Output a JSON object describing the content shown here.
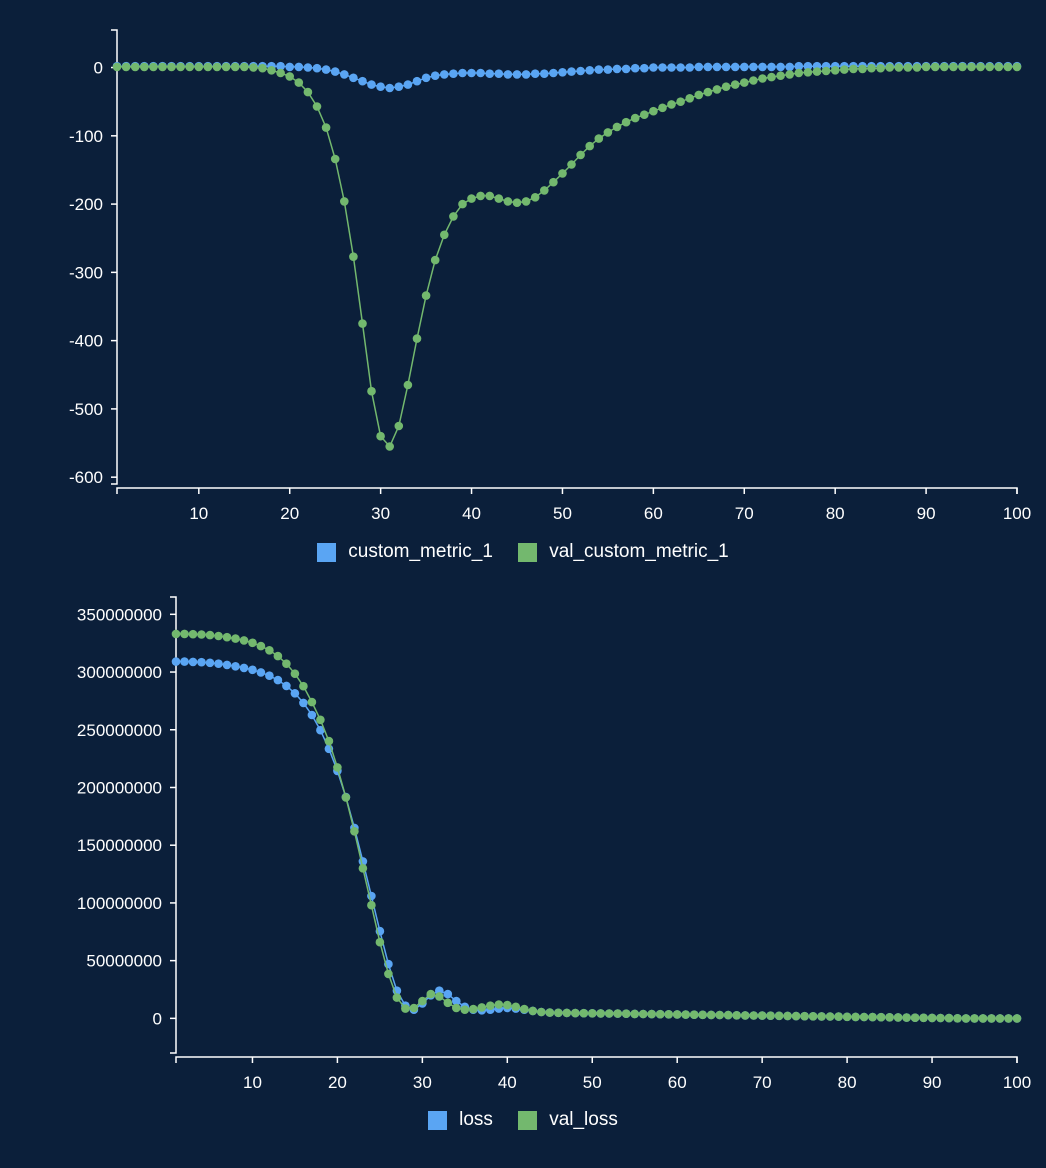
{
  "chart_data": [
    {
      "type": "line",
      "title": "",
      "xlabel": "",
      "ylabel": "",
      "xlim": [
        1,
        100
      ],
      "ylim": [
        -610,
        55
      ],
      "xticks": [
        "10",
        "20",
        "30",
        "40",
        "50",
        "60",
        "70",
        "80",
        "90",
        "100"
      ],
      "yticks": [
        "0",
        "-100",
        "-200",
        "-300",
        "-400",
        "-500",
        "-600"
      ],
      "legend_position": "bottom-center",
      "grid": false,
      "series": [
        {
          "name": "custom_metric_1",
          "color": "#5aa5f3",
          "x": [
            1,
            2,
            3,
            4,
            5,
            6,
            7,
            8,
            9,
            10,
            11,
            12,
            13,
            14,
            15,
            16,
            17,
            18,
            19,
            20,
            21,
            22,
            23,
            24,
            25,
            26,
            27,
            28,
            29,
            30,
            31,
            32,
            33,
            34,
            35,
            36,
            37,
            38,
            39,
            40,
            41,
            42,
            43,
            44,
            45,
            46,
            47,
            48,
            49,
            50,
            51,
            52,
            53,
            54,
            55,
            56,
            57,
            58,
            59,
            60,
            61,
            62,
            63,
            64,
            65,
            66,
            67,
            68,
            69,
            70,
            71,
            72,
            73,
            74,
            75,
            76,
            77,
            78,
            79,
            80,
            81,
            82,
            83,
            84,
            85,
            86,
            87,
            88,
            89,
            90,
            91,
            92,
            93,
            94,
            95,
            96,
            97,
            98,
            99,
            100
          ],
          "values": [
            2,
            2,
            2,
            2,
            2,
            2,
            2,
            2,
            2,
            2,
            2,
            2,
            2,
            2,
            2,
            2,
            2,
            2,
            2,
            1,
            1,
            0,
            -1,
            -3,
            -6,
            -10,
            -15,
            -20,
            -25,
            -28,
            -30,
            -28,
            -25,
            -20,
            -15,
            -12,
            -10,
            -9,
            -8,
            -8,
            -8,
            -9,
            -9,
            -10,
            -10,
            -10,
            -9,
            -9,
            -8,
            -7,
            -6,
            -5,
            -4,
            -3,
            -3,
            -2,
            -2,
            -1,
            -1,
            0,
            0,
            0,
            0,
            0,
            1,
            1,
            1,
            1,
            1,
            1,
            1,
            1,
            1,
            1,
            1,
            2,
            2,
            2,
            2,
            2,
            2,
            2,
            2,
            2,
            2,
            2,
            2,
            2,
            2,
            2,
            2,
            2,
            2,
            2,
            2,
            2,
            2,
            2,
            2,
            2
          ]
        },
        {
          "name": "val_custom_metric_1",
          "color": "#73b86e",
          "x": [
            1,
            2,
            3,
            4,
            5,
            6,
            7,
            8,
            9,
            10,
            11,
            12,
            13,
            14,
            15,
            16,
            17,
            18,
            19,
            20,
            21,
            22,
            23,
            24,
            25,
            26,
            27,
            28,
            29,
            30,
            31,
            32,
            33,
            34,
            35,
            36,
            37,
            38,
            39,
            40,
            41,
            42,
            43,
            44,
            45,
            46,
            47,
            48,
            49,
            50,
            51,
            52,
            53,
            54,
            55,
            56,
            57,
            58,
            59,
            60,
            61,
            62,
            63,
            64,
            65,
            66,
            67,
            68,
            69,
            70,
            71,
            72,
            73,
            74,
            75,
            76,
            77,
            78,
            79,
            80,
            81,
            82,
            83,
            84,
            85,
            86,
            87,
            88,
            89,
            90,
            91,
            92,
            93,
            94,
            95,
            96,
            97,
            98,
            99,
            100
          ],
          "values": [
            1,
            1,
            1,
            1,
            1,
            1,
            1,
            1,
            1,
            1,
            1,
            1,
            1,
            1,
            1,
            0,
            -1,
            -4,
            -8,
            -13,
            -22,
            -36,
            -57,
            -88,
            -134,
            -196,
            -277,
            -375,
            -474,
            -540,
            -555,
            -525,
            -465,
            -397,
            -334,
            -282,
            -245,
            -218,
            -200,
            -192,
            -188,
            -188,
            -192,
            -196,
            -198,
            -196,
            -190,
            -180,
            -168,
            -155,
            -142,
            -128,
            -115,
            -104,
            -95,
            -87,
            -80,
            -74,
            -69,
            -64,
            -59,
            -54,
            -50,
            -45,
            -40,
            -36,
            -32,
            -28,
            -25,
            -22,
            -19,
            -16,
            -14,
            -12,
            -10,
            -8,
            -7,
            -6,
            -5,
            -4,
            -3,
            -2,
            -2,
            -1,
            -1,
            0,
            0,
            0,
            0,
            1,
            1,
            1,
            1,
            1,
            1,
            1,
            1,
            1,
            1,
            1
          ]
        }
      ]
    },
    {
      "type": "line",
      "title": "",
      "xlabel": "",
      "ylabel": "",
      "xlim": [
        1,
        100
      ],
      "ylim": [
        -30000000,
        365000000
      ],
      "xticks": [
        "10",
        "20",
        "30",
        "40",
        "50",
        "60",
        "70",
        "80",
        "90",
        "100"
      ],
      "yticks": [
        "0",
        "50000000",
        "100000000",
        "150000000",
        "200000000",
        "250000000",
        "300000000",
        "350000000"
      ],
      "legend_position": "bottom-center",
      "grid": false,
      "series": [
        {
          "name": "loss",
          "color": "#5aa5f3",
          "x": [
            1,
            2,
            3,
            4,
            5,
            6,
            7,
            8,
            9,
            10,
            11,
            12,
            13,
            14,
            15,
            16,
            17,
            18,
            19,
            20,
            21,
            22,
            23,
            24,
            25,
            26,
            27,
            28,
            29,
            30,
            31,
            32,
            33,
            34,
            35,
            36,
            37,
            38,
            39,
            40,
            41,
            42,
            43,
            44,
            45,
            46,
            47,
            48,
            49,
            50,
            51,
            52,
            53,
            54,
            55,
            56,
            57,
            58,
            59,
            60,
            61,
            62,
            63,
            64,
            65,
            66,
            67,
            68,
            69,
            70,
            71,
            72,
            73,
            74,
            75,
            76,
            77,
            78,
            79,
            80,
            81,
            82,
            83,
            84,
            85,
            86,
            87,
            88,
            89,
            90,
            91,
            92,
            93,
            94,
            95,
            96,
            97,
            98,
            99,
            100
          ],
          "values": [
            309000000,
            309000000,
            308800000,
            308500000,
            308000000,
            307200000,
            306200000,
            305000000,
            303600000,
            301900000,
            299700000,
            296800000,
            293000000,
            288000000,
            281600000,
            273300000,
            262800000,
            249600000,
            233500000,
            214400000,
            191700000,
            165000000,
            136000000,
            106000000,
            75500000,
            47000000,
            24000000,
            11000000,
            7500000,
            13000000,
            20000000,
            24000000,
            21000000,
            15000000,
            10000000,
            7500000,
            7000000,
            7500000,
            8500000,
            9000000,
            8500000,
            7500000,
            6500000,
            5500000,
            5000000,
            4800000,
            4700000,
            4600000,
            4500000,
            4400000,
            4300000,
            4200000,
            4100000,
            4000000,
            3900000,
            3800000,
            3700000,
            3600000,
            3500000,
            3400000,
            3300000,
            3200000,
            3100000,
            3000000,
            2900000,
            2800000,
            2700000,
            2600000,
            2500000,
            2400000,
            2300000,
            2200000,
            2100000,
            2000000,
            1900000,
            1800000,
            1700000,
            1600000,
            1500000,
            1400000,
            1300000,
            1200000,
            1100000,
            1000000,
            900000,
            800000,
            700000,
            600000,
            500000,
            400000,
            300000,
            200000,
            100000,
            0,
            0,
            0,
            0,
            0,
            0,
            0
          ]
        },
        {
          "name": "val_loss",
          "color": "#73b86e",
          "x": [
            1,
            2,
            3,
            4,
            5,
            6,
            7,
            8,
            9,
            10,
            11,
            12,
            13,
            14,
            15,
            16,
            17,
            18,
            19,
            20,
            21,
            22,
            23,
            24,
            25,
            26,
            27,
            28,
            29,
            30,
            31,
            32,
            33,
            34,
            35,
            36,
            37,
            38,
            39,
            40,
            41,
            42,
            43,
            44,
            45,
            46,
            47,
            48,
            49,
            50,
            51,
            52,
            53,
            54,
            55,
            56,
            57,
            58,
            59,
            60,
            61,
            62,
            63,
            64,
            65,
            66,
            67,
            68,
            69,
            70,
            71,
            72,
            73,
            74,
            75,
            76,
            77,
            78,
            79,
            80,
            81,
            82,
            83,
            84,
            85,
            86,
            87,
            88,
            89,
            90,
            91,
            92,
            93,
            94,
            95,
            96,
            97,
            98,
            99,
            100
          ],
          "values": [
            333000000,
            333000000,
            332800000,
            332500000,
            332000000,
            331200000,
            330200000,
            329000000,
            327400000,
            325300000,
            322500000,
            318800000,
            313800000,
            307200000,
            298600000,
            287700000,
            274000000,
            258600000,
            240200000,
            217400000,
            191400000,
            162000000,
            130000000,
            98000000,
            66000000,
            38500000,
            18000000,
            8500000,
            9000000,
            15000000,
            21000000,
            19000000,
            13500000,
            9000000,
            7500000,
            8000000,
            9500000,
            11000000,
            12000000,
            11500000,
            10000000,
            8000000,
            6500000,
            5500000,
            5000000,
            4800000,
            4700000,
            4600000,
            4500000,
            4400000,
            4300000,
            4200000,
            4100000,
            4000000,
            3900000,
            3800000,
            3700000,
            3600000,
            3500000,
            3400000,
            3300000,
            3200000,
            3100000,
            3000000,
            2900000,
            2800000,
            2700000,
            2600000,
            2500000,
            2400000,
            2300000,
            2200000,
            2100000,
            2000000,
            1900000,
            1800000,
            1700000,
            1600000,
            1500000,
            1400000,
            1300000,
            1200000,
            1100000,
            1000000,
            900000,
            800000,
            700000,
            600000,
            500000,
            400000,
            300000,
            200000,
            100000,
            0,
            0,
            0,
            0,
            0,
            0,
            0
          ]
        }
      ]
    }
  ]
}
